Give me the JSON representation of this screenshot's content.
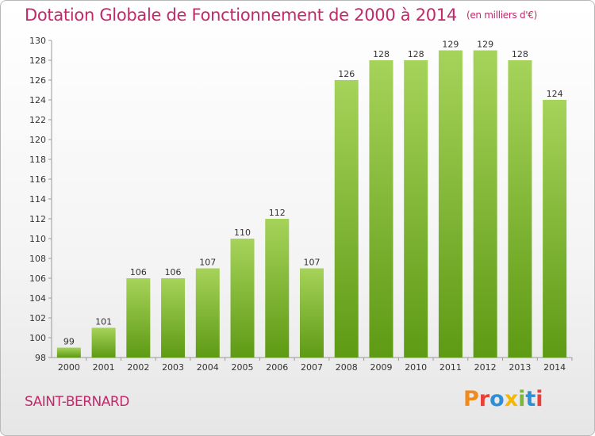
{
  "title": "Dotation Globale de Fonctionnement de 2000 à 2014",
  "unit_label": "(en milliers d'€)",
  "city": "SAINT-BERNARD",
  "logo": "Proxiti",
  "colors": {
    "title": "#c2286a",
    "bar_top": "#a6d35a",
    "bar_bottom": "#5e9a14",
    "logo_letters": [
      "#f08a1c",
      "#e8413a",
      "#2d8fd5",
      "#f5b800",
      "#7ab83a",
      "#2d8fd5",
      "#e8413a"
    ]
  },
  "chart_data": {
    "type": "bar",
    "categories": [
      "2000",
      "2001",
      "2002",
      "2003",
      "2004",
      "2005",
      "2006",
      "2007",
      "2008",
      "2009",
      "2010",
      "2011",
      "2012",
      "2013",
      "2014"
    ],
    "values": [
      99,
      101,
      106,
      106,
      107,
      110,
      112,
      107,
      126,
      128,
      128,
      129,
      129,
      128,
      124
    ],
    "ylim": [
      98,
      130
    ],
    "yticks": [
      98,
      100,
      102,
      104,
      106,
      108,
      110,
      112,
      114,
      116,
      118,
      120,
      122,
      124,
      126,
      128,
      130
    ],
    "grid": false,
    "xlabel": "",
    "ylabel": ""
  }
}
